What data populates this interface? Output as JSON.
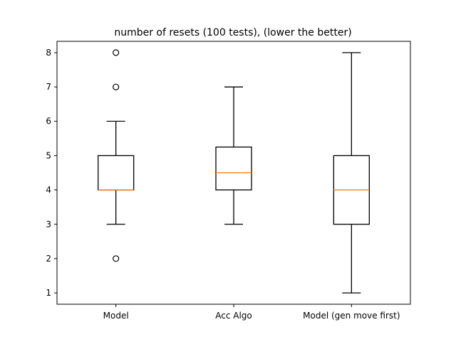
{
  "chart_data": {
    "type": "box",
    "title": "number of resets (100 tests), (lower the better)",
    "xlabel": "",
    "ylabel": "",
    "categories": [
      "Model",
      "Acc Algo",
      "Model (gen move first)"
    ],
    "ylim": [
      0.67,
      8.33
    ],
    "yticks": [
      1,
      2,
      3,
      4,
      5,
      6,
      7,
      8
    ],
    "grid": false,
    "legend": "none",
    "colors": {
      "box": "#000000",
      "median": "#ff7f0e",
      "flier": "#000000"
    },
    "boxes": [
      {
        "name": "Model",
        "whisker_low": 3,
        "q1": 4,
        "median": 4,
        "q3": 5,
        "whisker_high": 6,
        "fliers": [
          2,
          7,
          8
        ]
      },
      {
        "name": "Acc Algo",
        "whisker_low": 3,
        "q1": 4,
        "median": 4.5,
        "q3": 5.25,
        "whisker_high": 7,
        "fliers": []
      },
      {
        "name": "Model (gen move first)",
        "whisker_low": 1,
        "q1": 3,
        "median": 4,
        "q3": 5,
        "whisker_high": 8,
        "fliers": []
      }
    ]
  }
}
